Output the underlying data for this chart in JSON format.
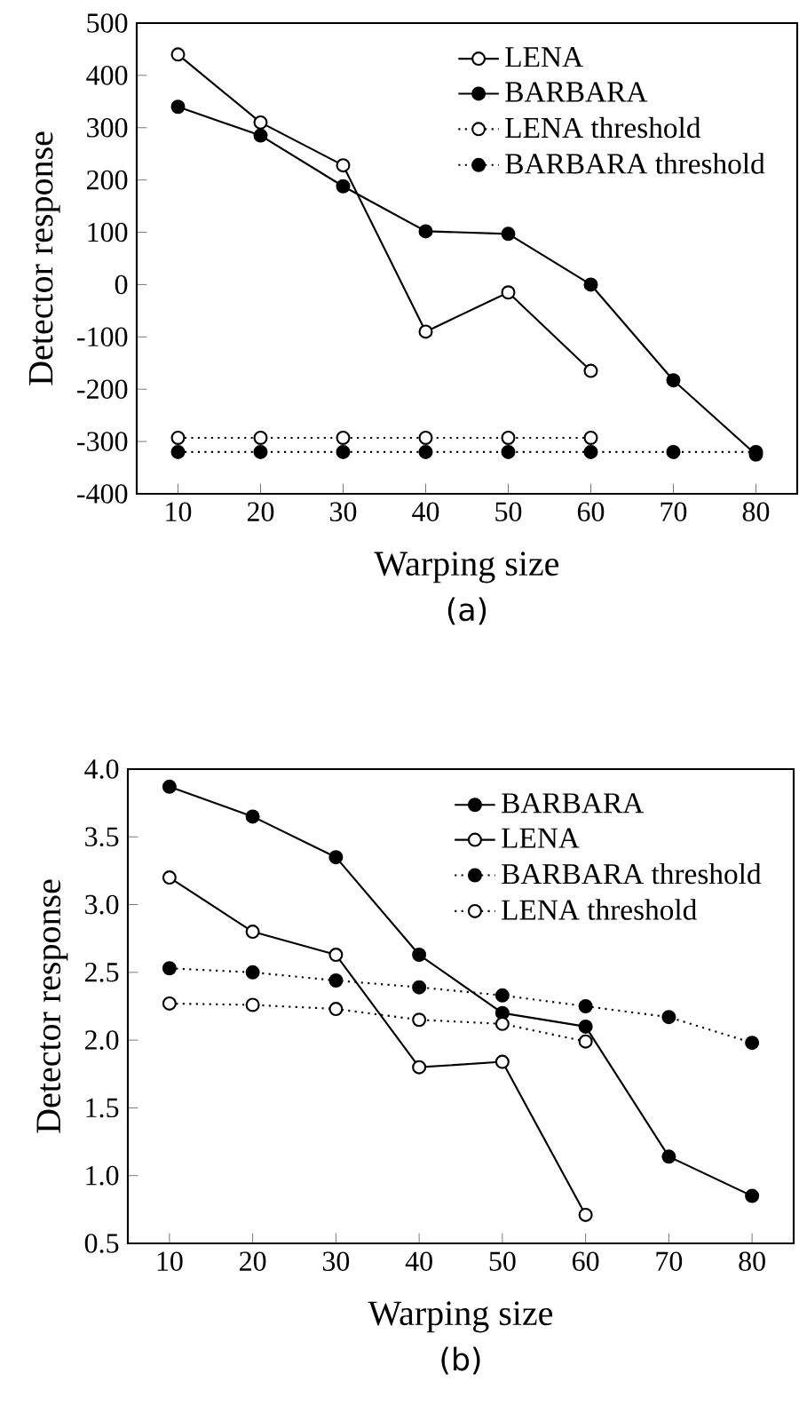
{
  "chart_data": [
    {
      "type": "line",
      "xlabel": "Warping size",
      "ylabel": "Detector response",
      "x": [
        10,
        20,
        30,
        40,
        50,
        60,
        70,
        80
      ],
      "xlim": [
        5,
        85
      ],
      "xticks": [
        10,
        20,
        30,
        40,
        50,
        60,
        70,
        80
      ],
      "ylim": [
        -400,
        500
      ],
      "yticks": [
        -400,
        -300,
        -200,
        -100,
        0,
        100,
        200,
        300,
        400,
        500
      ],
      "legend": "top right",
      "marker": "circle",
      "annotations": [
        "(a)"
      ],
      "series": [
        {
          "name": "LENA",
          "color": "#ffffff",
          "line_style": "solid",
          "values": [
            440,
            310,
            228,
            -90,
            -15,
            -165,
            null,
            null
          ]
        },
        {
          "name": "BARBARA",
          "color": "#000000",
          "line_style": "solid",
          "values": [
            340,
            285,
            188,
            102,
            97,
            0,
            -183,
            -325
          ]
        },
        {
          "name": "LENA threshold",
          "color": "#ffffff",
          "line_style": "dotted",
          "values": [
            -293,
            -293,
            -293,
            -293,
            -293,
            -293,
            null,
            null
          ]
        },
        {
          "name": "BARBARA threshold",
          "color": "#000000",
          "line_style": "dotted",
          "values": [
            -320,
            -320,
            -320,
            -320,
            -320,
            -320,
            -320,
            -320
          ]
        }
      ]
    },
    {
      "type": "line",
      "xlabel": "Warping size",
      "ylabel": "Detector response",
      "x": [
        10,
        20,
        30,
        40,
        50,
        60,
        70,
        80
      ],
      "xlim": [
        5,
        85
      ],
      "xticks": [
        10,
        20,
        30,
        40,
        50,
        60,
        70,
        80
      ],
      "ylim": [
        0.5,
        4.0
      ],
      "yticks": [
        {
          "value": 0.5,
          "label": "0.5"
        },
        {
          "value": 1.0,
          "label": "1.0"
        },
        {
          "value": 1.5,
          "label": "1.5"
        },
        {
          "value": 2.0,
          "label": "2.0"
        },
        {
          "value": 2.5,
          "label": "2.5"
        },
        {
          "value": 3.0,
          "label": "3.0"
        },
        {
          "value": 3.5,
          "label": "3.5"
        },
        {
          "value": 4.0,
          "label": "4.0"
        }
      ],
      "legend": "top right",
      "marker": "circle",
      "annotations": [
        "(b)"
      ],
      "series": [
        {
          "name": "BARBARA",
          "color": "#000000",
          "line_style": "solid",
          "values": [
            3.87,
            3.65,
            3.35,
            2.63,
            2.2,
            2.1,
            1.14,
            0.85
          ]
        },
        {
          "name": "LENA",
          "color": "#ffffff",
          "line_style": "solid",
          "values": [
            3.2,
            2.8,
            2.63,
            1.8,
            1.84,
            0.71,
            null,
            null
          ]
        },
        {
          "name": "BARBARA threshold",
          "color": "#000000",
          "line_style": "dotted",
          "values": [
            2.53,
            2.5,
            2.44,
            2.39,
            2.33,
            2.25,
            2.17,
            1.98
          ]
        },
        {
          "name": "LENA threshold",
          "color": "#ffffff",
          "line_style": "dotted",
          "values": [
            2.27,
            2.26,
            2.23,
            2.15,
            2.12,
            1.99,
            null,
            null
          ]
        }
      ]
    }
  ]
}
